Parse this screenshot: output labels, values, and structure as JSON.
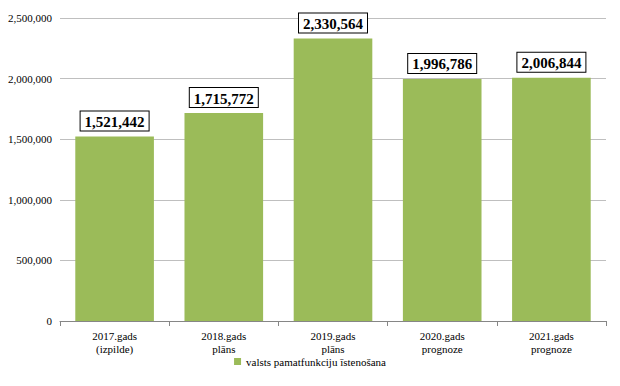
{
  "chart_data": {
    "type": "bar",
    "categories": [
      "2017.gads\n(izpilde)",
      "2018.gads\nplāns",
      "2019.gads\nplāns",
      "2020.gads\nprognoze",
      "2021.gads\nprognoze"
    ],
    "series": [
      {
        "name": "valsts pamatfunkciju īstenošana",
        "color": "#9bbb59",
        "values": [
          1521442,
          1715772,
          2330564,
          1996786,
          2006844
        ],
        "value_labels": [
          "1,521,442",
          "1,715,772",
          "2,330,564",
          "1,996,786",
          "2,006,844"
        ]
      }
    ],
    "ylim": [
      0,
      2500000
    ],
    "yticks": [
      0,
      {
        "value": 500000,
        "label": "500,000"
      },
      {
        "value": 1000000,
        "label": "1,000,000"
      },
      {
        "value": 1500000,
        "label": "1,500,000"
      },
      {
        "value": 2000000,
        "label": "2,000,000"
      },
      {
        "value": 2500000,
        "label": "2,500,000"
      }
    ],
    "grid": true,
    "data_labels": true,
    "legend": "bottom"
  }
}
